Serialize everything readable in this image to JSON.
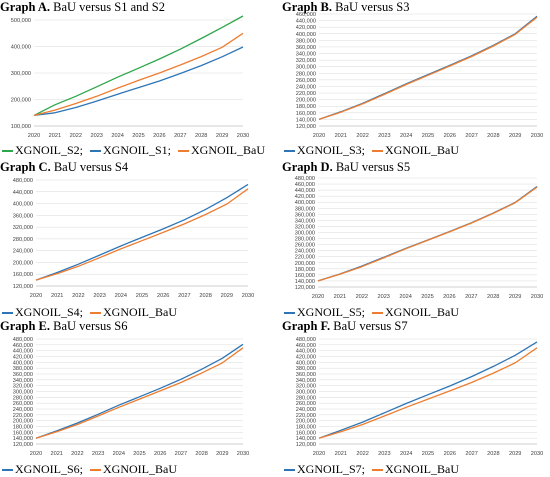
{
  "colors": {
    "s1": "#2E75B6",
    "alt": "#2E75B6",
    "alt_s2": "#2EA64A",
    "bau": "#ED7D31",
    "grid": "#d9d9d9",
    "axis": "#bfbfbf"
  },
  "chart_data": [
    {
      "type": "line",
      "letter": "Graph A.",
      "title": "BaU versus S1 and S2",
      "x": [
        "2020",
        "2021",
        "2022",
        "2023",
        "2024",
        "2025",
        "2026",
        "2027",
        "2028",
        "2029",
        "2030"
      ],
      "ylim": [
        100000,
        500000
      ],
      "yticks": [
        "100,000",
        "200,000",
        "300,000",
        "400,000",
        "500,000"
      ],
      "series": [
        {
          "name": "XGNOIL_S2",
          "key": "alt_s2",
          "values": [
            140000,
            180000,
            212000,
            248000,
            284000,
            318000,
            353000,
            390000,
            430000,
            472000,
            515000
          ]
        },
        {
          "name": "XGNOIL_S1",
          "key": "s1",
          "values": [
            140000,
            150000,
            170000,
            194000,
            220000,
            245000,
            270000,
            298000,
            328000,
            361000,
            398000
          ]
        },
        {
          "name": "XGNOIL_BaU",
          "key": "bau",
          "values": [
            140000,
            160000,
            185000,
            212000,
            243000,
            272000,
            300000,
            330000,
            362000,
            397000,
            450000
          ]
        }
      ],
      "legend": [
        "XGNOIL_S2;",
        "XGNOIL_S1;",
        "XGNOIL_BaU"
      ]
    },
    {
      "type": "line",
      "letter": "Graph B.",
      "title": "BaU versus S3",
      "x": [
        "2020",
        "2021",
        "2022",
        "2023",
        "2024",
        "2025",
        "2026",
        "2027",
        "2028",
        "2029",
        "2030"
      ],
      "ylim": [
        120000,
        460000
      ],
      "yticks": [
        "120,000",
        "140,000",
        "160,000",
        "180,000",
        "200,000",
        "220,000",
        "240,000",
        "260,000",
        "280,000",
        "300,000",
        "320,000",
        "340,000",
        "360,000",
        "380,000",
        "400,000",
        "420,000",
        "440,000",
        "460,000"
      ],
      "series": [
        {
          "name": "XGNOIL_S3",
          "key": "alt",
          "values": [
            140000,
            163000,
            189000,
            218000,
            248000,
            276000,
            304000,
            333000,
            365000,
            400000,
            453000
          ]
        },
        {
          "name": "XGNOIL_BaU",
          "key": "bau",
          "values": [
            140000,
            162000,
            187000,
            216000,
            246000,
            274000,
            302000,
            331000,
            363000,
            398000,
            450000
          ]
        }
      ],
      "legend": [
        "XGNOIL_S3;",
        "XGNOIL_BaU"
      ]
    },
    {
      "type": "line",
      "letter": "Graph C.",
      "title": "BaU versus S4",
      "x": [
        "2020",
        "2021",
        "2022",
        "2023",
        "2024",
        "2025",
        "2026",
        "2027",
        "2028",
        "2029",
        "2030"
      ],
      "ylim": [
        120000,
        480000
      ],
      "yticks": [
        "120,000",
        "160,000",
        "200,000",
        "240,000",
        "280,000",
        "320,000",
        "360,000",
        "400,000",
        "440,000",
        "480,000"
      ],
      "series": [
        {
          "name": "XGNOIL_S4",
          "key": "alt",
          "values": [
            140000,
            166000,
            194000,
            225000,
            256000,
            285000,
            314000,
            345000,
            380000,
            420000,
            465000
          ]
        },
        {
          "name": "XGNOIL_BaU",
          "key": "bau",
          "values": [
            140000,
            162000,
            187000,
            216000,
            246000,
            274000,
            302000,
            331000,
            363000,
            398000,
            450000
          ]
        }
      ],
      "legend": [
        "XGNOIL_S4;",
        "XGNOIL_BaU"
      ]
    },
    {
      "type": "line",
      "letter": "Graph D.",
      "title": "BaU versus S5",
      "x": [
        "2020",
        "2021",
        "2022",
        "2023",
        "2024",
        "2025",
        "2026",
        "2027",
        "2028",
        "2029",
        "2030"
      ],
      "ylim": [
        120000,
        480000
      ],
      "yticks": [
        "120,000",
        "140,000",
        "160,000",
        "180,000",
        "200,000",
        "220,000",
        "240,000",
        "260,000",
        "280,000",
        "300,000",
        "320,000",
        "340,000",
        "360,000",
        "380,000",
        "400,000",
        "420,000",
        "440,000",
        "460,000",
        "480,000"
      ],
      "series": [
        {
          "name": "XGNOIL_S5",
          "key": "alt",
          "values": [
            140000,
            163000,
            189000,
            218000,
            247000,
            275000,
            303000,
            332000,
            364000,
            399000,
            452000
          ]
        },
        {
          "name": "XGNOIL_BaU",
          "key": "bau",
          "values": [
            140000,
            162000,
            187000,
            216000,
            246000,
            274000,
            302000,
            331000,
            363000,
            398000,
            450000
          ]
        }
      ],
      "legend": [
        "XGNOIL_S5;",
        "XGNOIL_BaU"
      ]
    },
    {
      "type": "line",
      "letter": "Graph E.",
      "title": "BaU versus S6",
      "x": [
        "2020",
        "2021",
        "2022",
        "2023",
        "2024",
        "2025",
        "2026",
        "2027",
        "2028",
        "2029",
        "2030"
      ],
      "ylim": [
        120000,
        480000
      ],
      "yticks": [
        "120,000",
        "140,000",
        "160,000",
        "180,000",
        "200,000",
        "220,000",
        "240,000",
        "260,000",
        "280,000",
        "300,000",
        "320,000",
        "340,000",
        "360,000",
        "380,000",
        "400,000",
        "420,000",
        "440,000",
        "460,000",
        "480,000"
      ],
      "series": [
        {
          "name": "XGNOIL_S6",
          "key": "alt",
          "values": [
            140000,
            165000,
            192000,
            222000,
            253000,
            282000,
            311000,
            342000,
            376000,
            414000,
            462000
          ]
        },
        {
          "name": "XGNOIL_BaU",
          "key": "bau",
          "values": [
            140000,
            162000,
            187000,
            216000,
            246000,
            274000,
            302000,
            331000,
            363000,
            398000,
            450000
          ]
        }
      ],
      "legend": [
        "XGNOIL_S6;",
        "XGNOIL_BaU"
      ]
    },
    {
      "type": "line",
      "letter": "Graph F.",
      "title": "BaU versus S7",
      "x": [
        "2020",
        "2021",
        "2022",
        "2023",
        "2024",
        "2025",
        "2026",
        "2027",
        "2028",
        "2029",
        "2030"
      ],
      "ylim": [
        120000,
        480000
      ],
      "yticks": [
        "120,000",
        "140,000",
        "160,000",
        "180,000",
        "200,000",
        "220,000",
        "240,000",
        "260,000",
        "280,000",
        "300,000",
        "320,000",
        "340,000",
        "360,000",
        "380,000",
        "400,000",
        "420,000",
        "440,000",
        "460,000",
        "480,000"
      ],
      "series": [
        {
          "name": "XGNOIL_S7",
          "key": "alt",
          "values": [
            140000,
            167000,
            195000,
            227000,
            259000,
            289000,
            319000,
            351000,
            386000,
            424000,
            470000
          ]
        },
        {
          "name": "XGNOIL_BaU",
          "key": "bau",
          "values": [
            140000,
            162000,
            187000,
            216000,
            246000,
            274000,
            302000,
            331000,
            363000,
            398000,
            450000
          ]
        }
      ],
      "legend": [
        "XGNOIL_S7;",
        "XGNOIL_BaU"
      ]
    }
  ]
}
